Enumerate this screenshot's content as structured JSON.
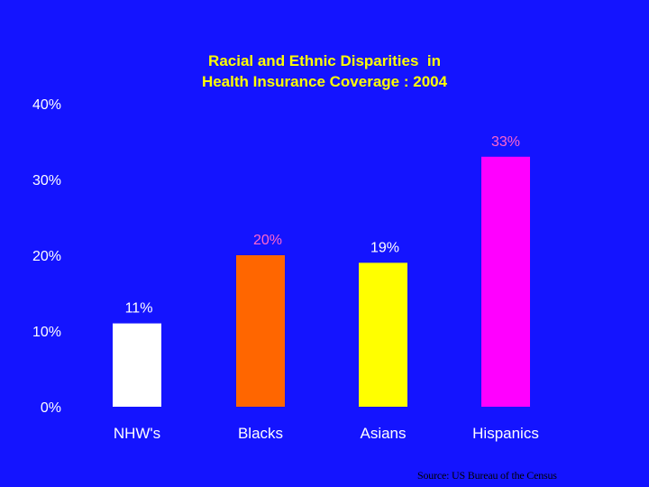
{
  "chart_data": {
    "type": "bar",
    "title_lines": [
      "Racial and Ethnic Disparities  in",
      "Health Insurance Coverage : 2004"
    ],
    "categories": [
      "NHW's",
      "Blacks",
      "Asians",
      "Hispanics"
    ],
    "values": [
      11,
      20,
      19,
      33
    ],
    "data_labels": [
      "11%",
      "20%",
      "19%",
      "33%"
    ],
    "bar_colors": [
      "#ffffff",
      "#ff6600",
      "#ffff00",
      "#ff00ff"
    ],
    "data_label_colors": [
      "#ffffff",
      "#ff66cc",
      "#ffffff",
      "#ff66cc"
    ],
    "ylim": [
      0,
      40
    ],
    "y_ticks": [
      {
        "value": 0,
        "label": "0%"
      },
      {
        "value": 10,
        "label": "10%"
      },
      {
        "value": 20,
        "label": "20%"
      },
      {
        "value": 30,
        "label": "30%"
      },
      {
        "value": 40,
        "label": "40%"
      }
    ],
    "grid": false,
    "xlabel": "",
    "ylabel": ""
  },
  "source_note": "Source: US Bureau of the Census",
  "colors": {
    "background": "#1414ff",
    "title": "#ffff00",
    "axis_text": "#ffffff"
  }
}
